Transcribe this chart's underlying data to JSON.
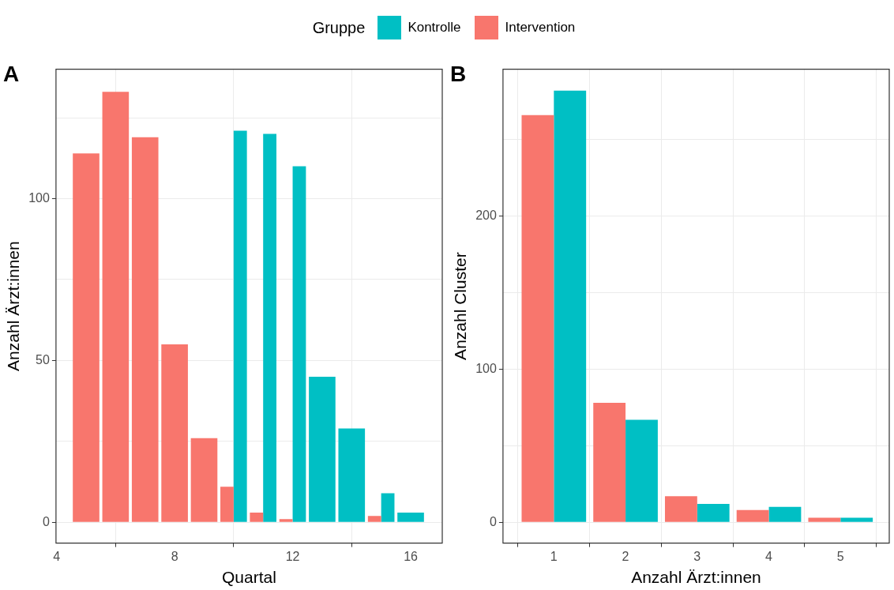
{
  "chart_data": [
    {
      "type": "bar",
      "title": "A",
      "xlabel": "Quartal",
      "ylabel": "Anzahl Ärzt:innen",
      "legend_title": "Gruppe",
      "legend": "top",
      "grid": true,
      "x": [
        5,
        6,
        7,
        8,
        9,
        10,
        11,
        12,
        13,
        14,
        15,
        16
      ],
      "series": [
        {
          "name": "Kontrolle",
          "color": "#00bfc4",
          "values": [
            null,
            null,
            null,
            null,
            null,
            121,
            120,
            110,
            45,
            29,
            9,
            3
          ]
        },
        {
          "name": "Intervention",
          "color": "#f8766d",
          "values": [
            114,
            133,
            119,
            55,
            26,
            11,
            3,
            1,
            null,
            null,
            2,
            null
          ]
        }
      ],
      "xlim": [
        3.98,
        17.07
      ],
      "xticks": [
        4,
        8,
        12,
        16
      ],
      "ylim": [
        -6.4,
        140
      ],
      "yticks": [
        0,
        {
          "value": 25,
          "label": null
        },
        50,
        {
          "value": 75,
          "label": null
        },
        100,
        {
          "value": 125,
          "label": null
        }
      ]
    },
    {
      "type": "bar",
      "title": "B",
      "xlabel": "Anzahl Ärzt:innen",
      "ylabel": "Anzahl Cluster",
      "grid": true,
      "legend": "top",
      "x": [
        1,
        2,
        3,
        4,
        5
      ],
      "series": [
        {
          "name": "Kontrolle",
          "color": "#00bfc4",
          "values": [
            282,
            67,
            12,
            10,
            3
          ]
        },
        {
          "name": "Intervention",
          "color": "#f8766d",
          "values": [
            266,
            78,
            17,
            8,
            3
          ]
        }
      ],
      "xlim": [
        0.29,
        5.68
      ],
      "xticks": [
        1,
        2,
        3,
        4,
        5
      ],
      "ylim": [
        -13.6,
        296
      ],
      "yticks": [
        0,
        {
          "value": 50,
          "label": null
        },
        100,
        {
          "value": 150,
          "label": null
        },
        200,
        {
          "value": 250,
          "label": null
        }
      ]
    }
  ]
}
